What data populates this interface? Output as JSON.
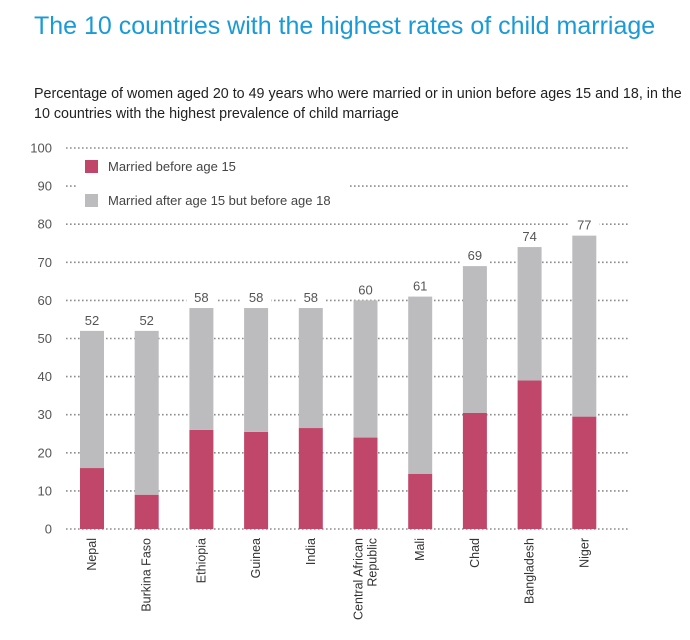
{
  "title": "The 10 countries with the highest rates of child marriage",
  "subtitle": "Percentage of women aged 20 to 49 years who were married or in union before ages 15 and 18, in the 10 countries with the highest prevalence of child marriage",
  "colors": {
    "before15": "#c0476a",
    "after15": "#bcbcbe",
    "title": "#1a9ad6",
    "grid": "#8c8c8c"
  },
  "chart_data": {
    "type": "bar",
    "stacked": true,
    "title": "The 10 countries with the highest rates of child marriage",
    "xlabel": "",
    "ylabel": "",
    "ylim": [
      0,
      100
    ],
    "yticks": [
      0,
      10,
      20,
      30,
      40,
      50,
      60,
      70,
      80,
      90,
      100
    ],
    "grid": true,
    "legend": "top-left",
    "categories": [
      [
        "Nepal"
      ],
      [
        "Burkina Faso"
      ],
      [
        "Ethiopia"
      ],
      [
        "Guinea"
      ],
      [
        "India"
      ],
      [
        "Central African",
        "Republic"
      ],
      [
        "Mali"
      ],
      [
        "Chad"
      ],
      [
        "Bangladesh"
      ],
      [
        "Niger"
      ]
    ],
    "series": [
      {
        "name": "Married before age 15",
        "values": [
          16,
          9,
          26,
          25.5,
          26.5,
          24,
          14.5,
          30.5,
          39,
          29.5
        ]
      },
      {
        "name": "Married after age 15 but before age 18",
        "values": [
          36,
          43,
          32,
          32.5,
          31.5,
          36,
          46.5,
          38.5,
          35,
          47.5
        ]
      }
    ],
    "totals": [
      52,
      52,
      58,
      58,
      58,
      60,
      61,
      69,
      74,
      77
    ],
    "total_labels": [
      "52",
      "52",
      "58",
      "58",
      "58",
      "60",
      "61",
      "69",
      "74",
      "77"
    ]
  }
}
